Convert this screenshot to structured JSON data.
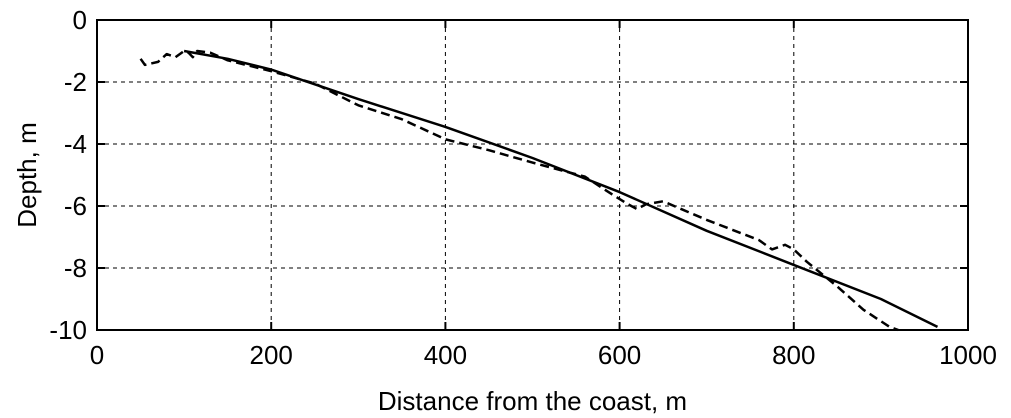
{
  "chart_data": {
    "type": "line",
    "title": "",
    "xlabel": "Distance from the coast, m",
    "ylabel": "Depth, m",
    "xlim": [
      0,
      1000
    ],
    "ylim": [
      -10,
      0
    ],
    "xticks": [
      0,
      200,
      400,
      600,
      800,
      1000
    ],
    "yticks": [
      0,
      -2,
      -4,
      -6,
      -8,
      -10
    ],
    "xtick_labels": [
      "0",
      "200",
      "400",
      "600",
      "800",
      "1000"
    ],
    "ytick_labels": [
      "0",
      "-2",
      "-4",
      "-6",
      "-8",
      "-10"
    ],
    "grid": true,
    "legend": "none",
    "series": [
      {
        "style": "solid",
        "color": "#000000",
        "points": [
          [
            100,
            -1.0
          ],
          [
            150,
            -1.25
          ],
          [
            200,
            -1.6
          ],
          [
            300,
            -2.55
          ],
          [
            400,
            -3.45
          ],
          [
            500,
            -4.45
          ],
          [
            600,
            -5.55
          ],
          [
            700,
            -6.8
          ],
          [
            800,
            -7.9
          ],
          [
            900,
            -9.0
          ],
          [
            965,
            -9.9
          ]
        ]
      },
      {
        "style": "dashed",
        "color": "#000000",
        "points": [
          [
            50,
            -1.25
          ],
          [
            55,
            -1.45
          ],
          [
            70,
            -1.35
          ],
          [
            80,
            -1.1
          ],
          [
            90,
            -1.2
          ],
          [
            100,
            -1.0
          ],
          [
            105,
            -1.05
          ],
          [
            110,
            -1.2
          ],
          [
            115,
            -1.0
          ],
          [
            130,
            -1.05
          ],
          [
            150,
            -1.3
          ],
          [
            200,
            -1.65
          ],
          [
            250,
            -2.05
          ],
          [
            300,
            -2.75
          ],
          [
            350,
            -3.2
          ],
          [
            400,
            -3.85
          ],
          [
            450,
            -4.2
          ],
          [
            500,
            -4.6
          ],
          [
            560,
            -5.05
          ],
          [
            590,
            -5.6
          ],
          [
            610,
            -5.95
          ],
          [
            620,
            -6.1
          ],
          [
            630,
            -5.95
          ],
          [
            650,
            -5.85
          ],
          [
            700,
            -6.45
          ],
          [
            760,
            -7.1
          ],
          [
            775,
            -7.4
          ],
          [
            790,
            -7.25
          ],
          [
            800,
            -7.4
          ],
          [
            815,
            -7.8
          ],
          [
            850,
            -8.6
          ],
          [
            880,
            -9.35
          ],
          [
            910,
            -9.9
          ],
          [
            920,
            -10.0
          ]
        ]
      }
    ]
  }
}
